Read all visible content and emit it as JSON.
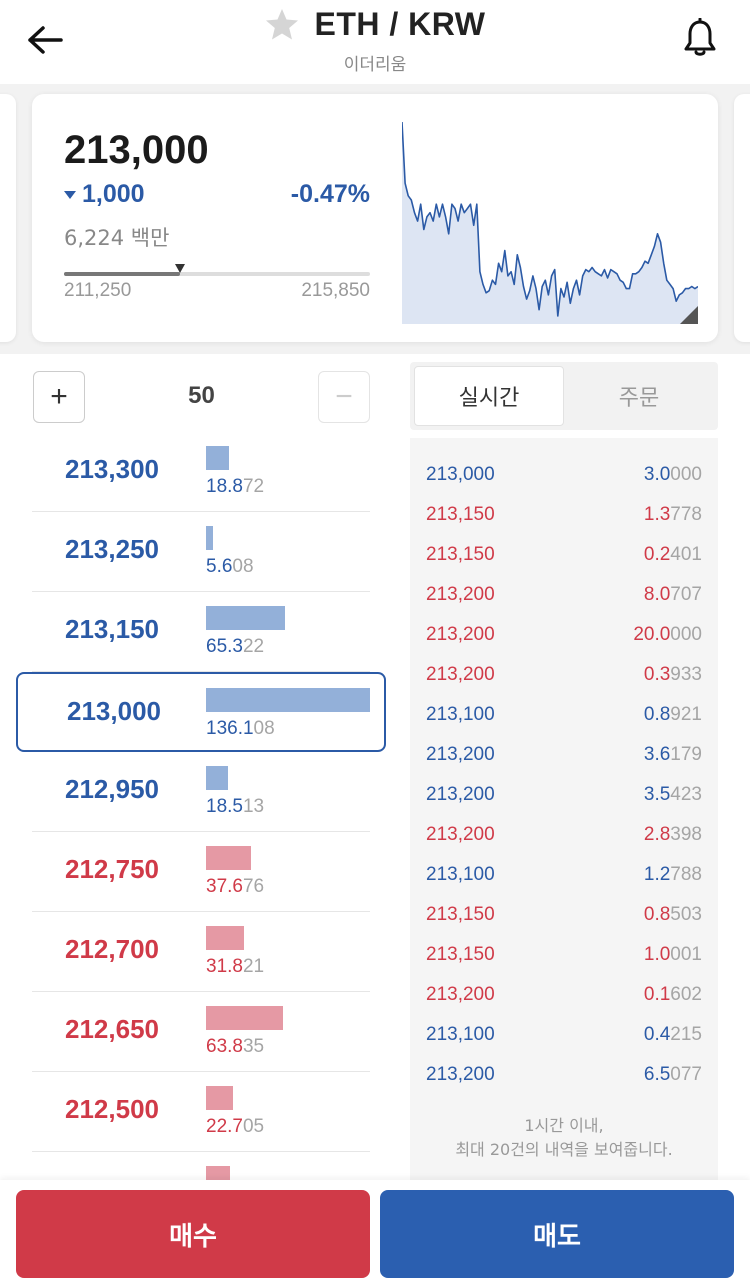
{
  "header": {
    "title": "ETH / KRW",
    "subtitle": "이더리움",
    "back_icon": "arrow-left-icon",
    "favorite_icon": "star-icon",
    "alert_icon": "bell-icon"
  },
  "summary": {
    "price": "213,000",
    "change_abs": "1,000",
    "change_pct": "-0.47%",
    "volume": "6,224 백만",
    "range_low": "211,250",
    "range_high": "215,850",
    "range_position": 0.38,
    "colors": {
      "down": "#2b5aa6",
      "up": "#d03a48"
    }
  },
  "chart_data": {
    "type": "area",
    "values": [
      215850,
      214400,
      214100,
      214000,
      213700,
      213500,
      213900,
      213300,
      213600,
      213700,
      213500,
      213900,
      213600,
      213900,
      213600,
      213200,
      213900,
      213800,
      213500,
      213900,
      213700,
      213800,
      213900,
      213400,
      213900,
      212300,
      212000,
      211800,
      211850,
      212100,
      212000,
      212500,
      212300,
      212800,
      212200,
      212300,
      212000,
      212700,
      212400,
      211950,
      211650,
      211850,
      212200,
      211900,
      211400,
      211950,
      212100,
      211750,
      212200,
      212350,
      211250,
      211900,
      211700,
      212050,
      211550,
      211900,
      212100,
      211750,
      212200,
      212350,
      212300,
      212400,
      212300,
      212250,
      212200,
      212350,
      212150,
      212350,
      212300,
      212250,
      212100,
      212050,
      211900,
      211900,
      212250,
      212250,
      212300,
      212400,
      212550,
      212500,
      212700,
      212900,
      213200,
      213000,
      212500,
      212100,
      212000,
      211900,
      211600,
      211750,
      211800,
      211900,
      211900,
      211950,
      211900,
      211950
    ],
    "ylim": [
      211250,
      215850
    ]
  },
  "stepper": {
    "value": "50",
    "plus_label": "+",
    "minus_label": "−"
  },
  "orderbook": [
    {
      "price": "213,300",
      "qty_main": "18.8",
      "qty_rest": "72",
      "qty": 18.872,
      "side": "ask"
    },
    {
      "price": "213,250",
      "qty_main": "5.6",
      "qty_rest": "08",
      "qty": 5.608,
      "side": "ask"
    },
    {
      "price": "213,150",
      "qty_main": "65.3",
      "qty_rest": "22",
      "qty": 65.322,
      "side": "ask"
    },
    {
      "price": "213,000",
      "qty_main": "136.1",
      "qty_rest": "08",
      "qty": 136.108,
      "side": "ask",
      "current": true
    },
    {
      "price": "212,950",
      "qty_main": "18.5",
      "qty_rest": "13",
      "qty": 18.513,
      "side": "ask"
    },
    {
      "price": "212,750",
      "qty_main": "37.6",
      "qty_rest": "76",
      "qty": 37.676,
      "side": "bid"
    },
    {
      "price": "212,700",
      "qty_main": "31.8",
      "qty_rest": "21",
      "qty": 31.821,
      "side": "bid"
    },
    {
      "price": "212,650",
      "qty_main": "63.8",
      "qty_rest": "35",
      "qty": 63.835,
      "side": "bid"
    },
    {
      "price": "212,500",
      "qty_main": "22.7",
      "qty_rest": "05",
      "qty": 22.705,
      "side": "bid"
    },
    {
      "price": "",
      "qty_main": "",
      "qty_rest": "",
      "qty": 20.0,
      "side": "bid"
    }
  ],
  "tabs": [
    {
      "label": "실시간",
      "active": true
    },
    {
      "label": "주문",
      "active": false
    }
  ],
  "trades": [
    {
      "price": "213,000",
      "qty_main": "3.0",
      "qty_rest": "000",
      "side": "sell"
    },
    {
      "price": "213,150",
      "qty_main": "1.3",
      "qty_rest": "778",
      "side": "buy"
    },
    {
      "price": "213,150",
      "qty_main": "0.2",
      "qty_rest": "401",
      "side": "buy"
    },
    {
      "price": "213,200",
      "qty_main": "8.0",
      "qty_rest": "707",
      "side": "buy"
    },
    {
      "price": "213,200",
      "qty_main": "20.0",
      "qty_rest": "000",
      "side": "buy"
    },
    {
      "price": "213,200",
      "qty_main": "0.3",
      "qty_rest": "933",
      "side": "buy"
    },
    {
      "price": "213,100",
      "qty_main": "0.8",
      "qty_rest": "921",
      "side": "sell"
    },
    {
      "price": "213,200",
      "qty_main": "3.6",
      "qty_rest": "179",
      "side": "sell"
    },
    {
      "price": "213,200",
      "qty_main": "3.5",
      "qty_rest": "423",
      "side": "sell"
    },
    {
      "price": "213,200",
      "qty_main": "2.8",
      "qty_rest": "398",
      "side": "buy"
    },
    {
      "price": "213,100",
      "qty_main": "1.2",
      "qty_rest": "788",
      "side": "sell"
    },
    {
      "price": "213,150",
      "qty_main": "0.8",
      "qty_rest": "503",
      "side": "buy"
    },
    {
      "price": "213,150",
      "qty_main": "1.0",
      "qty_rest": "001",
      "side": "buy"
    },
    {
      "price": "213,200",
      "qty_main": "0.1",
      "qty_rest": "602",
      "side": "buy"
    },
    {
      "price": "213,100",
      "qty_main": "0.4",
      "qty_rest": "215",
      "side": "sell"
    },
    {
      "price": "213,200",
      "qty_main": "6.5",
      "qty_rest": "077",
      "side": "sell"
    }
  ],
  "trades_note": [
    "1시간 이내,",
    "최대 20건의 내역을 보여줍니다."
  ],
  "actions": {
    "buy_label": "매수",
    "sell_label": "매도"
  }
}
